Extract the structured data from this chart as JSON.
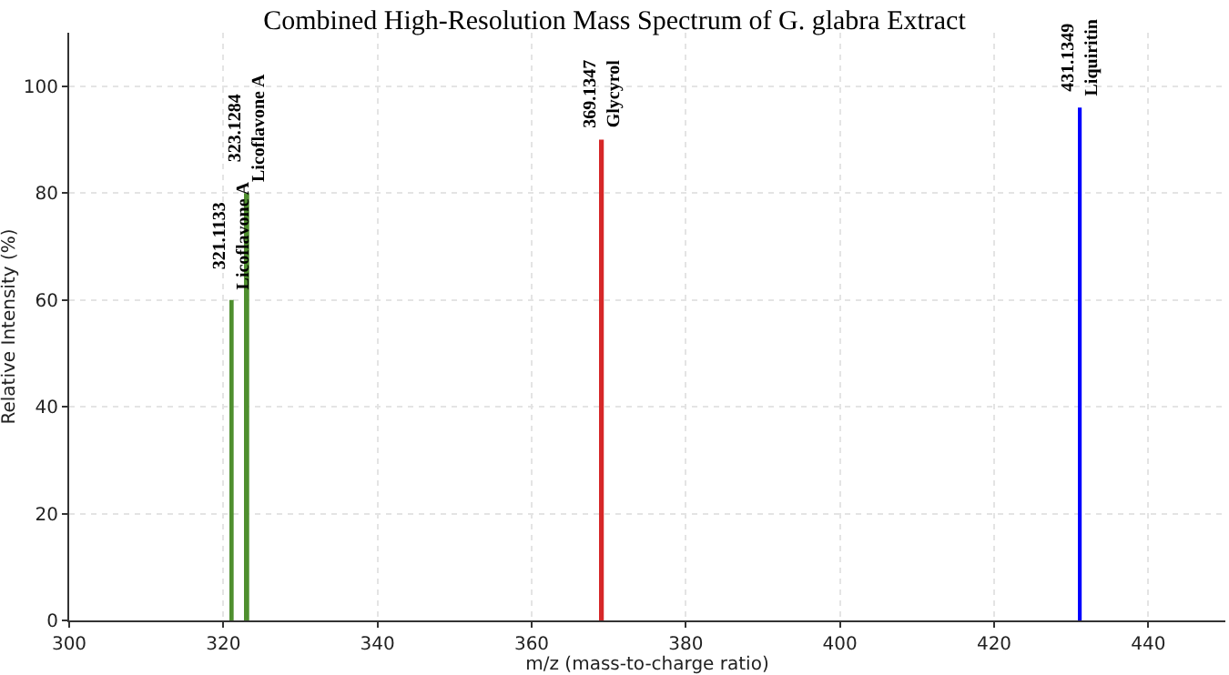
{
  "chart_data": {
    "type": "bar",
    "title": "Combined High-Resolution Mass Spectrum of G. glabra Extract",
    "xlabel": "m/z (mass-to-charge ratio)",
    "ylabel": "Relative Intensity (%)",
    "x": [
      321.1133,
      323.1284,
      369.1347,
      431.1349
    ],
    "values": [
      60,
      80,
      90,
      96
    ],
    "colors": [
      "#4f8f2f",
      "#4f8f2f",
      "#d62728",
      "#0000ff"
    ],
    "annotations": [
      {
        "text": "321.1133\nLicoflavone A",
        "x": 321.1133,
        "y": 60
      },
      {
        "text": "323.1284\nLicoflavone A",
        "x": 323.1284,
        "y": 80
      },
      {
        "text": "369.1347\nGlycyrol",
        "x": 369.1347,
        "y": 90
      },
      {
        "text": "431.1349\nLiquiritin",
        "x": 431.1349,
        "y": 96
      }
    ],
    "xlim": [
      300,
      450
    ],
    "xticks": [
      300,
      320,
      340,
      360,
      380,
      400,
      420,
      440
    ],
    "ylim": [
      0,
      110
    ],
    "yticks": [
      0,
      20,
      40,
      60,
      80,
      100
    ],
    "grid": true
  }
}
